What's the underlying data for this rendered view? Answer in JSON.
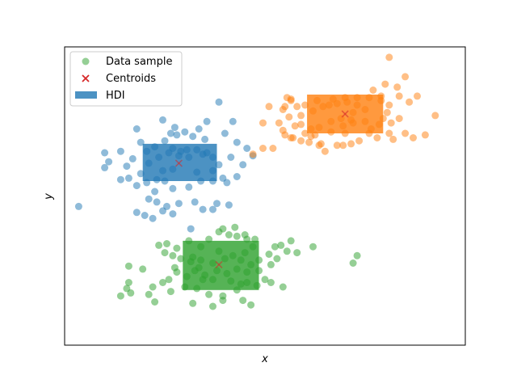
{
  "chart_data": {
    "type": "scatter",
    "xlabel": "x",
    "ylabel": "y",
    "xlim": [
      -10,
      10
    ],
    "ylim": [
      -10,
      10
    ],
    "ticks_visible": false,
    "grid": false,
    "legend": {
      "placement": "top-left",
      "entries": [
        {
          "label": "Data sample",
          "kind": "point",
          "color": "#2ca02c"
        },
        {
          "label": "Centroids",
          "kind": "x-marker",
          "color": "#d62728"
        },
        {
          "label": "HDI",
          "kind": "patch",
          "color": "#1f77b4"
        }
      ]
    },
    "series": [
      {
        "color": "#1f77b4",
        "centroid": [
          -4.3,
          2.2
        ],
        "hdi": {
          "x": [
            -6.1,
            -2.4
          ],
          "y": [
            1.0,
            3.5
          ]
        },
        "points": [
          [
            -2.3,
            6.3
          ],
          [
            -5.1,
            5.1
          ],
          [
            -2.9,
            5.0
          ],
          [
            -1.6,
            5.0
          ],
          [
            -4.5,
            4.6
          ],
          [
            -2.0,
            4.2
          ],
          [
            -6.4,
            4.5
          ],
          [
            -6.2,
            3.6
          ],
          [
            -5.5,
            3.3
          ],
          [
            -4.6,
            3.2
          ],
          [
            -4.2,
            3.0
          ],
          [
            -3.9,
            3.1
          ],
          [
            -3.4,
            3.1
          ],
          [
            -2.9,
            2.9
          ],
          [
            -3.0,
            3.8
          ],
          [
            -3.6,
            4.0
          ],
          [
            -3.3,
            4.5
          ],
          [
            -4.0,
            4.3
          ],
          [
            -4.4,
            4.1
          ],
          [
            -4.7,
            4.2
          ],
          [
            -5.0,
            3.7
          ],
          [
            -5.9,
            3.0
          ],
          [
            -7.2,
            3.0
          ],
          [
            -7.8,
            2.3
          ],
          [
            -8.0,
            1.9
          ],
          [
            -8.0,
            2.9
          ],
          [
            -6.6,
            2.5
          ],
          [
            -5.8,
            2.2
          ],
          [
            -5.1,
            1.7
          ],
          [
            -4.6,
            1.8
          ],
          [
            -4.8,
            2.9
          ],
          [
            -4.3,
            2.7
          ],
          [
            -3.8,
            2.6
          ],
          [
            -3.1,
            2.8
          ],
          [
            -2.6,
            2.6
          ],
          [
            -2.3,
            2.1
          ],
          [
            -1.7,
            2.6
          ],
          [
            -1.1,
            2.1
          ],
          [
            -1.4,
            1.3
          ],
          [
            -0.6,
            2.7
          ],
          [
            -0.9,
            3.2
          ],
          [
            -6.9,
            2.0
          ],
          [
            -6.8,
            1.2
          ],
          [
            -7.2,
            1.1
          ],
          [
            -6.4,
            0.7
          ],
          [
            -5.9,
            0.9
          ],
          [
            -5.4,
            1.1
          ],
          [
            -5.0,
            1.0
          ],
          [
            -4.6,
            0.5
          ],
          [
            -3.8,
            0.6
          ],
          [
            -3.2,
            1.0
          ],
          [
            -2.6,
            1.0
          ],
          [
            -2.1,
            1.2
          ],
          [
            -5.5,
            0.3
          ],
          [
            -5.8,
            -0.2
          ],
          [
            -5.4,
            -0.4
          ],
          [
            -4.9,
            -0.7
          ],
          [
            -5.1,
            -1.0
          ],
          [
            -4.3,
            -0.5
          ],
          [
            -3.5,
            -0.4
          ],
          [
            -2.4,
            -0.5
          ],
          [
            -2.6,
            -0.9
          ],
          [
            -3.1,
            -0.9
          ],
          [
            -1.8,
            -0.6
          ],
          [
            -5.6,
            -1.5
          ],
          [
            -6.4,
            -1.1
          ],
          [
            -9.3,
            -0.7
          ],
          [
            -2.6,
            1.7
          ],
          [
            -3.4,
            1.6
          ],
          [
            -5.3,
            2.6
          ],
          [
            -6.2,
            1.5
          ],
          [
            -3.7,
            -2.2
          ],
          [
            -4.6,
            -1.2
          ],
          [
            -1.9,
            0.9
          ],
          [
            -1.4,
            3.6
          ],
          [
            -6.0,
            -1.3
          ]
        ]
      },
      {
        "color": "#ff7f0e",
        "centroid": [
          4.0,
          5.5
        ],
        "hdi": {
          "x": [
            2.1,
            5.9
          ],
          "y": [
            4.2,
            6.8
          ]
        },
        "points": [
          [
            6.2,
            9.3
          ],
          [
            7.0,
            8.0
          ],
          [
            6.6,
            7.3
          ],
          [
            6.0,
            7.5
          ],
          [
            5.4,
            7.1
          ],
          [
            5.8,
            6.7
          ],
          [
            6.7,
            6.7
          ],
          [
            7.2,
            6.3
          ],
          [
            7.6,
            6.7
          ],
          [
            8.5,
            5.4
          ],
          [
            6.1,
            5.6
          ],
          [
            6.7,
            5.2
          ],
          [
            6.3,
            4.9
          ],
          [
            5.7,
            4.8
          ],
          [
            5.3,
            4.5
          ],
          [
            6.2,
            4.2
          ],
          [
            7.0,
            4.2
          ],
          [
            7.4,
            3.9
          ],
          [
            8.0,
            4.1
          ],
          [
            6.4,
            3.8
          ],
          [
            5.6,
            3.9
          ],
          [
            4.7,
            3.7
          ],
          [
            4.3,
            3.5
          ],
          [
            3.6,
            3.4
          ],
          [
            2.8,
            3.5
          ],
          [
            2.2,
            3.6
          ],
          [
            1.8,
            3.7
          ],
          [
            1.4,
            3.9
          ],
          [
            0.9,
            4.4
          ],
          [
            1.0,
            4.1
          ],
          [
            0.7,
            4.9
          ],
          [
            1.2,
            5.3
          ],
          [
            1.8,
            5.4
          ],
          [
            2.4,
            5.7
          ],
          [
            2.9,
            6.0
          ],
          [
            3.2,
            6.1
          ],
          [
            3.6,
            6.2
          ],
          [
            4.1,
            6.3
          ],
          [
            4.6,
            6.1
          ],
          [
            5.0,
            5.8
          ],
          [
            4.4,
            5.6
          ],
          [
            3.8,
            5.2
          ],
          [
            3.3,
            5.0
          ],
          [
            2.7,
            4.6
          ],
          [
            2.3,
            4.5
          ],
          [
            1.8,
            4.8
          ],
          [
            1.6,
            6.0
          ],
          [
            1.3,
            6.4
          ],
          [
            1.1,
            6.6
          ],
          [
            1.0,
            6.0
          ],
          [
            0.9,
            5.8
          ],
          [
            0.2,
            6.0
          ],
          [
            -0.1,
            4.9
          ],
          [
            1.3,
            6.5
          ],
          [
            2.0,
            6.1
          ],
          [
            2.6,
            6.4
          ],
          [
            3.4,
            6.5
          ],
          [
            4.0,
            6.6
          ],
          [
            4.6,
            6.6
          ],
          [
            5.2,
            6.6
          ],
          [
            5.8,
            6.4
          ],
          [
            6.2,
            6.1
          ],
          [
            5.9,
            5.2
          ],
          [
            5.0,
            5.0
          ],
          [
            4.4,
            4.9
          ],
          [
            3.9,
            4.7
          ],
          [
            3.3,
            4.3
          ],
          [
            2.5,
            4.1
          ],
          [
            2.0,
            4.2
          ],
          [
            3.9,
            3.4
          ],
          [
            3.0,
            3.0
          ],
          [
            4.0,
            4.2
          ],
          [
            4.3,
            5.1
          ],
          [
            5.2,
            4.2
          ],
          [
            1.5,
            4.7
          ],
          [
            2.3,
            4.0
          ],
          [
            1.3,
            3.9
          ],
          [
            0.4,
            3.2
          ],
          [
            -0.1,
            3.2
          ],
          [
            -0.6,
            2.8
          ],
          [
            2.7,
            3.4
          ]
        ]
      },
      {
        "color": "#2ca02c",
        "centroid": [
          -2.3,
          -4.6
        ],
        "hdi": {
          "x": [
            -4.1,
            -0.3
          ],
          "y": [
            -6.3,
            -3.0
          ]
        },
        "points": [
          [
            -2.1,
            -2.2
          ],
          [
            -1.5,
            -2.1
          ],
          [
            -1.0,
            -2.6
          ],
          [
            -0.5,
            -2.9
          ],
          [
            -0.6,
            -3.4
          ],
          [
            -0.9,
            -2.9
          ],
          [
            -1.4,
            -2.7
          ],
          [
            -1.8,
            -2.6
          ],
          [
            -2.3,
            -2.4
          ],
          [
            -2.8,
            -2.9
          ],
          [
            -3.2,
            -3.4
          ],
          [
            -3.8,
            -3.0
          ],
          [
            -4.4,
            -3.5
          ],
          [
            -4.9,
            -3.2
          ],
          [
            -5.3,
            -3.3
          ],
          [
            -5.0,
            -3.8
          ],
          [
            -4.6,
            -4.0
          ],
          [
            -4.2,
            -4.2
          ],
          [
            -3.7,
            -4.4
          ],
          [
            -3.2,
            -4.3
          ],
          [
            -2.6,
            -4.5
          ],
          [
            -2.0,
            -4.2
          ],
          [
            -1.6,
            -4.0
          ],
          [
            -1.2,
            -4.3
          ],
          [
            -0.7,
            -4.6
          ],
          [
            -0.3,
            -4.3
          ],
          [
            0.2,
            -3.9
          ],
          [
            0.5,
            -3.4
          ],
          [
            0.8,
            -3.3
          ],
          [
            1.3,
            -3.0
          ],
          [
            1.1,
            -3.7
          ],
          [
            0.6,
            -4.2
          ],
          [
            0.3,
            -4.6
          ],
          [
            -0.3,
            -5.0
          ],
          [
            -0.9,
            -5.1
          ],
          [
            -1.4,
            -4.9
          ],
          [
            -1.9,
            -5.2
          ],
          [
            -2.4,
            -5.0
          ],
          [
            -3.0,
            -5.3
          ],
          [
            -3.5,
            -5.0
          ],
          [
            -3.9,
            -5.4
          ],
          [
            -4.4,
            -5.1
          ],
          [
            -4.8,
            -5.6
          ],
          [
            -5.1,
            -5.8
          ],
          [
            -5.6,
            -6.1
          ],
          [
            -6.1,
            -4.9
          ],
          [
            -6.8,
            -4.7
          ],
          [
            -6.8,
            -5.8
          ],
          [
            -6.9,
            -6.2
          ],
          [
            -7.2,
            -6.7
          ],
          [
            -6.7,
            -6.5
          ],
          [
            -5.8,
            -6.6
          ],
          [
            -5.5,
            -7.1
          ],
          [
            -4.7,
            -6.4
          ],
          [
            -4.0,
            -6.1
          ],
          [
            -3.4,
            -6.2
          ],
          [
            -2.8,
            -6.6
          ],
          [
            -2.1,
            -6.7
          ],
          [
            -1.4,
            -6.3
          ],
          [
            -0.9,
            -5.8
          ],
          [
            -0.4,
            -6.0
          ],
          [
            0.0,
            -5.6
          ],
          [
            0.3,
            -5.8
          ],
          [
            0.9,
            -6.1
          ],
          [
            -0.7,
            -7.3
          ],
          [
            -1.1,
            -7.0
          ],
          [
            -2.1,
            -7.0
          ],
          [
            -2.6,
            -7.4
          ],
          [
            -3.6,
            -7.2
          ],
          [
            -3.1,
            -5.6
          ],
          [
            -1.7,
            -5.7
          ],
          [
            -2.6,
            -5.6
          ],
          [
            -3.3,
            -4.8
          ],
          [
            -2.3,
            -3.7
          ],
          [
            -1.0,
            -3.8
          ],
          [
            -1.2,
            -5.9
          ],
          [
            1.6,
            -3.8
          ],
          [
            2.4,
            -3.4
          ],
          [
            4.6,
            -4.0
          ],
          [
            4.4,
            -4.5
          ],
          [
            -3.6,
            -4.1
          ],
          [
            -4.5,
            -4.8
          ]
        ]
      }
    ]
  }
}
